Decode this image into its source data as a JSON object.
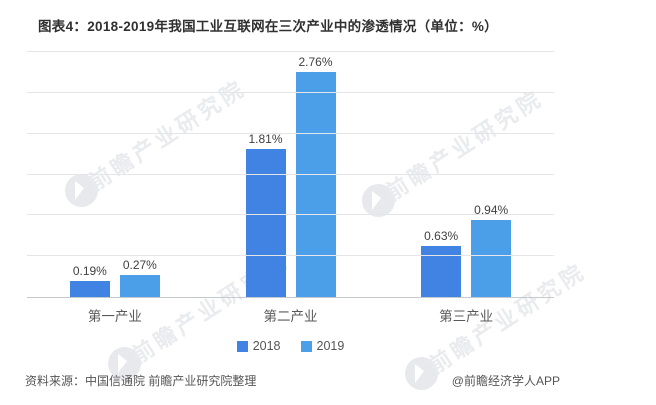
{
  "title": "图表4：2018-2019年我国工业互联网在三次产业中的渗透情况（单位：%）",
  "chart_data": {
    "type": "bar",
    "categories": [
      "第一产业",
      "第二产业",
      "第三产业"
    ],
    "series": [
      {
        "name": "2018",
        "color": "#4183e2",
        "values": [
          0.19,
          1.81,
          0.63
        ],
        "labels": [
          "0.19%",
          "1.81%",
          "0.63%"
        ]
      },
      {
        "name": "2019",
        "color": "#4b9fe9",
        "values": [
          0.27,
          2.76,
          0.94
        ],
        "labels": [
          "0.27%",
          "2.76%",
          "0.94%"
        ]
      }
    ],
    "ylim": [
      0,
      3.0
    ],
    "gridline_step": 0.5,
    "grid": true,
    "legend_position": "bottom",
    "unit": "%"
  },
  "watermark": {
    "text": "前瞻产业研究院"
  },
  "footer": {
    "source": "资料来源：中国信通院 前瞻产业研究院整理",
    "credit": "@前瞻经济学人APP"
  }
}
